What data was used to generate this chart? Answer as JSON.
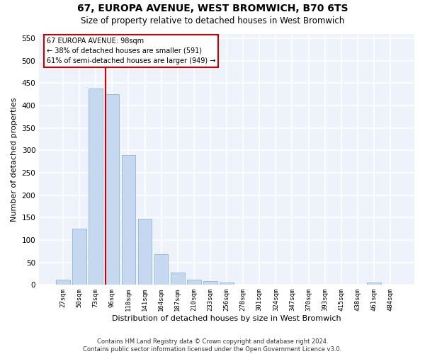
{
  "title": "67, EUROPA AVENUE, WEST BROMWICH, B70 6TS",
  "subtitle": "Size of property relative to detached houses in West Bromwich",
  "xlabel": "Distribution of detached houses by size in West Bromwich",
  "ylabel": "Number of detached properties",
  "categories": [
    "27sqm",
    "50sqm",
    "73sqm",
    "96sqm",
    "118sqm",
    "141sqm",
    "164sqm",
    "187sqm",
    "210sqm",
    "233sqm",
    "256sqm",
    "278sqm",
    "301sqm",
    "324sqm",
    "347sqm",
    "370sqm",
    "393sqm",
    "415sqm",
    "438sqm",
    "461sqm",
    "484sqm"
  ],
  "values": [
    12,
    125,
    437,
    425,
    290,
    147,
    68,
    27,
    11,
    8,
    5,
    1,
    1,
    1,
    1,
    1,
    1,
    1,
    1,
    6,
    0
  ],
  "bar_color": "#c5d8ef",
  "bar_edge_color": "#7ab0d8",
  "annotation_box_text": "67 EUROPA AVENUE: 98sqm\n← 38% of detached houses are smaller (591)\n61% of semi-detached houses are larger (949) →",
  "vline_color": "#cc0000",
  "vline_x": 2.58,
  "ylim_max": 560,
  "yticks": [
    0,
    50,
    100,
    150,
    200,
    250,
    300,
    350,
    400,
    450,
    500,
    550
  ],
  "bg_color": "#eef2fa",
  "footer": "Contains HM Land Registry data © Crown copyright and database right 2024.\nContains public sector information licensed under the Open Government Licence v3.0.",
  "title_fontsize": 10,
  "subtitle_fontsize": 8.5,
  "xlabel_fontsize": 8,
  "ylabel_fontsize": 8,
  "ann_fontsize": 7,
  "footer_fontsize": 6
}
